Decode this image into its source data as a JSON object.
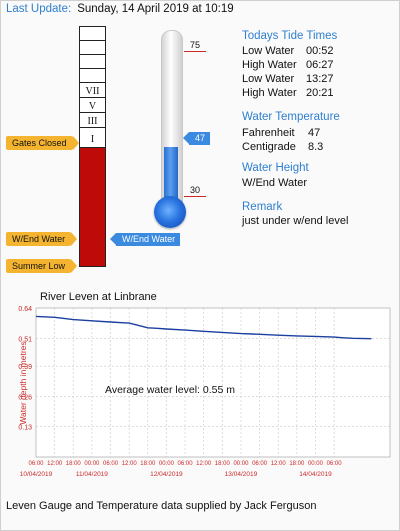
{
  "last_update": {
    "label": "Last Update:",
    "value": "Sunday, 14 April 2019 at 10:19"
  },
  "gauge": {
    "segments": [
      "",
      "",
      "",
      "",
      "VII",
      "V",
      "III",
      "I"
    ],
    "gates_closed": "Gates Closed",
    "wend_water": "W/End Water",
    "summer_low": "Summer Low",
    "current_marker": "W/End Water"
  },
  "thermometer": {
    "scale_high": "75",
    "scale_low": "30",
    "current": "47",
    "fill_fraction": 0.38,
    "fill_color": "#3a8ae0"
  },
  "tides": {
    "heading": "Todays Tide Times",
    "rows": [
      {
        "label": "Low Water",
        "time": "00:52"
      },
      {
        "label": "High Water",
        "time": "06:27"
      },
      {
        "label": "Low Water",
        "time": "13:27"
      },
      {
        "label": "High Water",
        "time": "20:21"
      }
    ]
  },
  "water_temperature": {
    "heading": "Water Temperature",
    "rows": [
      {
        "label": "Fahrenheit",
        "value": "47"
      },
      {
        "label": "Centigrade",
        "value": "8.3"
      }
    ]
  },
  "water_height": {
    "heading": "Water Height",
    "value": "W/End Water"
  },
  "remark": {
    "heading": "Remark",
    "value": "just under w/end level"
  },
  "chart_data": {
    "type": "line",
    "title": "River Leven at Linbrane",
    "ylabel": "Water depth in metres",
    "annotation": "Average water level: 0.55 m",
    "y_ticks": [
      "0.64",
      "0.51",
      "0.39",
      "0.26",
      "0.13"
    ],
    "ylim": [
      0,
      0.64
    ],
    "x_ticks": [
      "06:00",
      "12:00",
      "18:00",
      "00:00",
      "06:00",
      "12:00",
      "18:00",
      "00:00",
      "06:00",
      "12:00",
      "18:00",
      "00:00",
      "06:00",
      "12:00",
      "18:00",
      "00:00",
      "06:00"
    ],
    "date_labels": [
      "10/04/2019",
      "11/04/2019",
      "12/04/2019",
      "13/04/2019",
      "14/04/2019"
    ],
    "series": [
      {
        "color": "#1b3fa0",
        "x_hours": [
          0,
          6,
          12,
          18,
          24,
          30,
          36,
          39,
          42,
          48,
          54,
          60,
          66,
          72,
          78,
          84,
          90,
          96,
          99,
          102,
          108
        ],
        "values": [
          0.604,
          0.6,
          0.59,
          0.585,
          0.58,
          0.575,
          0.555,
          0.553,
          0.55,
          0.545,
          0.54,
          0.535,
          0.53,
          0.527,
          0.523,
          0.52,
          0.518,
          0.515,
          0.512,
          0.51,
          0.508
        ]
      }
    ],
    "grid": true
  },
  "footer": "Leven Gauge and Temperature data supplied by Jack Ferguson"
}
